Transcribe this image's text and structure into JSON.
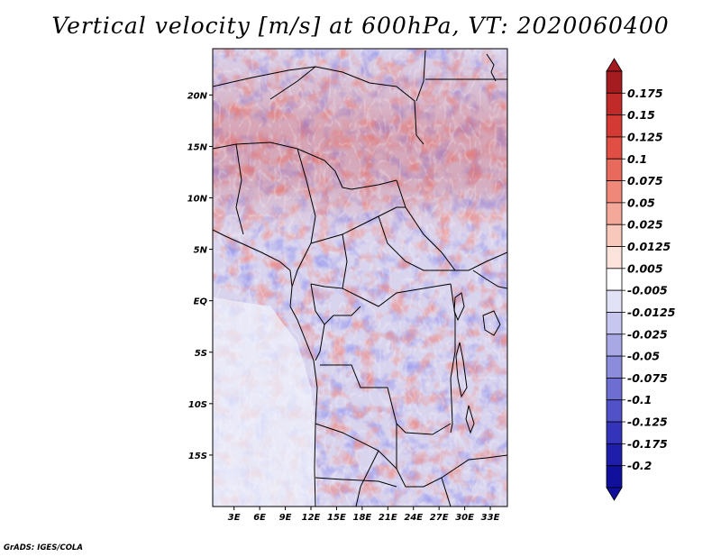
{
  "title": "Vertical velocity [m/s] at 600hPa, VT: 2020060400",
  "footer": "GrADS: IGES/COLA",
  "map": {
    "lat_labels": [
      "20N",
      "15N",
      "10N",
      "5N",
      "EQ",
      "5S",
      "10S",
      "15S"
    ],
    "lat_values": [
      20,
      15,
      10,
      5,
      0,
      -5,
      -10,
      -15
    ],
    "lon_labels": [
      "3E",
      "6E",
      "9E",
      "12E",
      "15E",
      "18E",
      "21E",
      "24E",
      "27E",
      "30E",
      "33E"
    ],
    "lon_values": [
      3,
      6,
      9,
      12,
      15,
      18,
      21,
      24,
      27,
      30,
      33
    ],
    "lat_range": [
      -20,
      24.5
    ],
    "lon_range": [
      0.5,
      35
    ]
  },
  "colorbar": {
    "labels": [
      "0.175",
      "0.15",
      "0.125",
      "0.1",
      "0.075",
      "0.05",
      "0.025",
      "0.0125",
      "0.005",
      "-0.005",
      "-0.0125",
      "-0.025",
      "-0.05",
      "-0.075",
      "-0.1",
      "-0.125",
      "-0.175",
      "-0.2"
    ],
    "colors": [
      "#a41c20",
      "#c02a28",
      "#d43a34",
      "#e04e44",
      "#e86a5c",
      "#ef8878",
      "#f4a89a",
      "#f8c8bd",
      "#fce4dd",
      "#ffffff",
      "#e2e2f6",
      "#c6c6ee",
      "#a8a8e4",
      "#8c8cdc",
      "#6e6ed2",
      "#5252c8",
      "#3434bb",
      "#1e1eaa",
      "#10109c"
    ]
  }
}
